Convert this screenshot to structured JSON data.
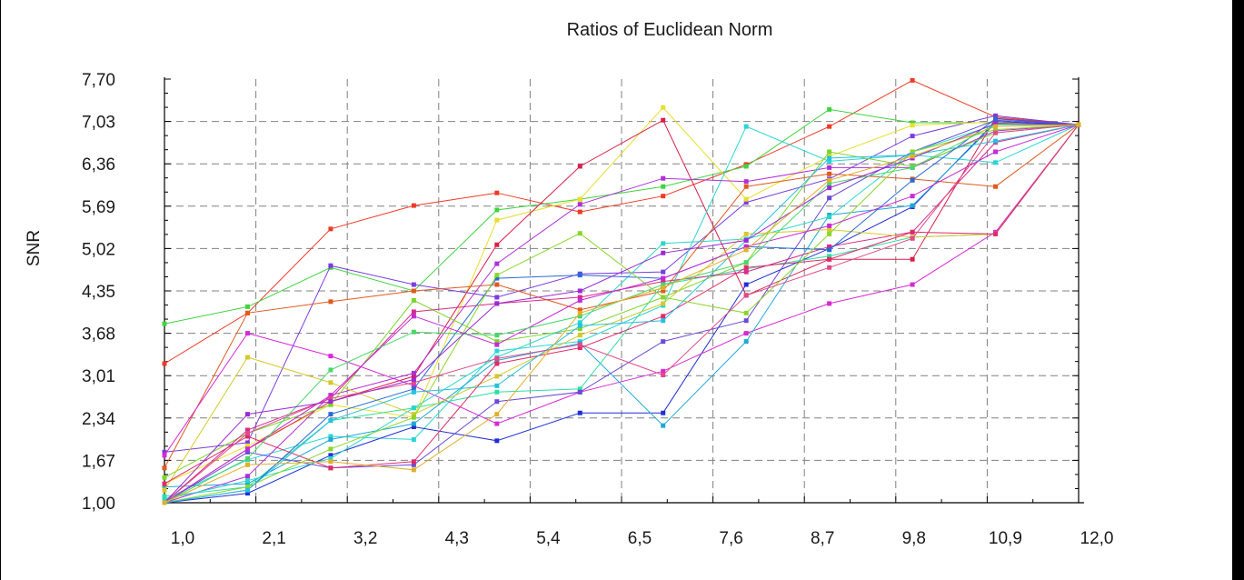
{
  "chart_data": {
    "type": "line",
    "title": "Ratios of Euclidean Norm",
    "xlabel": "",
    "ylabel": "SNR",
    "x_ticks": [
      "1,0",
      "2,1",
      "3,2",
      "4,3",
      "5,4",
      "6,5",
      "7,6",
      "8,7",
      "9,8",
      "10,9",
      "12,0"
    ],
    "y_ticks": [
      "7,70",
      "7,03",
      "6,36",
      "5,69",
      "5,02",
      "4,35",
      "3,68",
      "3,01",
      "2,34",
      "1,67",
      "1,00"
    ],
    "xlim": [
      1.0,
      12.0
    ],
    "ylim": [
      1.0,
      7.7
    ],
    "grid": true,
    "x": [
      1,
      2,
      3,
      4,
      5,
      6,
      7,
      8,
      9,
      10,
      11,
      12
    ],
    "series": [
      {
        "color": "#f03a26",
        "values": [
          3.2,
          4.0,
          5.33,
          5.7,
          5.9,
          5.6,
          5.85,
          6.35,
          6.95,
          7.68,
          7.1,
          6.98
        ]
      },
      {
        "color": "#3fd43f",
        "values": [
          3.83,
          4.1,
          4.72,
          4.35,
          5.63,
          5.8,
          6.0,
          6.32,
          7.22,
          7.01,
          7.01,
          6.98
        ]
      },
      {
        "color": "#7a3de0",
        "values": [
          1.8,
          1.95,
          4.75,
          4.45,
          4.25,
          4.62,
          4.65,
          5.75,
          6.12,
          6.8,
          7.12,
          6.98
        ]
      },
      {
        "color": "#e8df2a",
        "values": [
          1.3,
          1.9,
          2.55,
          2.35,
          5.47,
          5.8,
          7.25,
          5.8,
          6.48,
          6.97,
          7.02,
          6.98
        ]
      },
      {
        "color": "#d91f4a",
        "values": [
          1.0,
          1.85,
          2.6,
          3.0,
          5.08,
          6.32,
          7.05,
          4.28,
          4.85,
          4.85,
          7.08,
          6.98
        ]
      },
      {
        "color": "#29d6d6",
        "values": [
          1.05,
          1.68,
          2.05,
          2.0,
          3.4,
          3.55,
          4.12,
          6.95,
          6.4,
          6.5,
          6.38,
          6.98
        ]
      },
      {
        "color": "#e05a1e",
        "values": [
          1.55,
          4.0,
          4.18,
          4.35,
          4.45,
          4.05,
          4.35,
          6.0,
          6.2,
          6.12,
          6.0,
          6.98
        ]
      },
      {
        "color": "#1f2fd6",
        "values": [
          1.0,
          1.15,
          1.75,
          2.2,
          1.98,
          2.42,
          2.42,
          4.45,
          5.02,
          5.68,
          7.03,
          6.98
        ]
      },
      {
        "color": "#d629d6",
        "values": [
          1.75,
          3.68,
          3.32,
          2.85,
          2.25,
          2.75,
          3.08,
          3.68,
          4.15,
          4.45,
          5.28,
          6.98
        ]
      },
      {
        "color": "#1ea8d6",
        "values": [
          1.25,
          1.3,
          2.0,
          2.25,
          3.25,
          3.52,
          2.22,
          3.55,
          5.55,
          5.7,
          7.0,
          6.98
        ]
      },
      {
        "color": "#2ee0a0",
        "values": [
          1.1,
          1.25,
          2.3,
          2.5,
          2.75,
          2.8,
          4.45,
          4.7,
          4.9,
          5.2,
          5.25,
          6.98
        ]
      },
      {
        "color": "#b02fd6",
        "values": [
          1.0,
          1.42,
          2.7,
          3.05,
          4.78,
          5.72,
          6.13,
          6.08,
          6.3,
          6.3,
          6.88,
          6.98
        ]
      },
      {
        "color": "#7ad62a",
        "values": [
          1.4,
          2.1,
          2.55,
          4.2,
          3.55,
          3.75,
          4.25,
          4.8,
          6.55,
          6.32,
          6.85,
          6.98
        ]
      },
      {
        "color": "#6a4ad6",
        "values": [
          1.0,
          1.8,
          1.55,
          1.6,
          2.6,
          2.75,
          3.55,
          3.88,
          5.82,
          6.55,
          7.05,
          6.98
        ]
      },
      {
        "color": "#d62a8c",
        "values": [
          1.0,
          2.15,
          2.65,
          4.02,
          4.15,
          4.25,
          4.5,
          4.65,
          5.05,
          5.28,
          6.7,
          6.98
        ]
      },
      {
        "color": "#2ad6c8",
        "values": [
          1.05,
          1.35,
          1.7,
          2.5,
          3.3,
          3.85,
          5.1,
          5.17,
          5.52,
          6.55,
          6.98,
          6.98
        ]
      },
      {
        "color": "#d6c92a",
        "values": [
          1.2,
          3.3,
          2.9,
          2.4,
          3.0,
          3.65,
          4.15,
          5.25,
          5.32,
          5.2,
          5.25,
          6.98
        ]
      },
      {
        "color": "#2a6ad6",
        "values": [
          1.0,
          1.2,
          2.4,
          2.8,
          4.55,
          4.6,
          4.55,
          5.05,
          5.0,
          6.1,
          7.07,
          6.98
        ]
      },
      {
        "color": "#e02a6a",
        "values": [
          1.3,
          2.05,
          1.55,
          1.65,
          3.2,
          3.45,
          3.95,
          4.72,
          4.85,
          5.28,
          5.25,
          6.98
        ]
      },
      {
        "color": "#8ad62a",
        "values": [
          1.0,
          1.25,
          1.85,
          2.35,
          4.6,
          5.26,
          4.25,
          4.0,
          5.25,
          6.55,
          6.9,
          6.98
        ]
      },
      {
        "color": "#c62ad6",
        "values": [
          1.0,
          1.85,
          2.7,
          3.95,
          3.5,
          4.2,
          4.55,
          5.05,
          5.38,
          5.85,
          6.55,
          6.98
        ]
      },
      {
        "color": "#26c0e0",
        "values": [
          1.0,
          1.2,
          2.3,
          2.75,
          2.85,
          3.8,
          3.88,
          5.15,
          6.45,
          6.5,
          6.72,
          6.98
        ]
      },
      {
        "color": "#e04a8a",
        "values": [
          1.0,
          2.1,
          2.65,
          2.9,
          3.28,
          3.5,
          3.02,
          4.28,
          4.72,
          5.18,
          6.85,
          6.98
        ]
      },
      {
        "color": "#4ad66a",
        "values": [
          1.0,
          1.7,
          3.1,
          3.7,
          3.65,
          3.95,
          4.45,
          4.8,
          6.05,
          6.3,
          6.98,
          6.98
        ]
      },
      {
        "color": "#9a2ad6",
        "values": [
          1.0,
          2.4,
          2.6,
          2.95,
          4.15,
          4.35,
          4.95,
          5.15,
          5.98,
          6.45,
          7.0,
          6.98
        ]
      },
      {
        "color": "#e0b02a",
        "values": [
          1.0,
          1.6,
          1.65,
          1.52,
          2.4,
          4.0,
          4.4,
          5.0,
          6.1,
          6.48,
          6.95,
          6.98
        ]
      }
    ]
  }
}
